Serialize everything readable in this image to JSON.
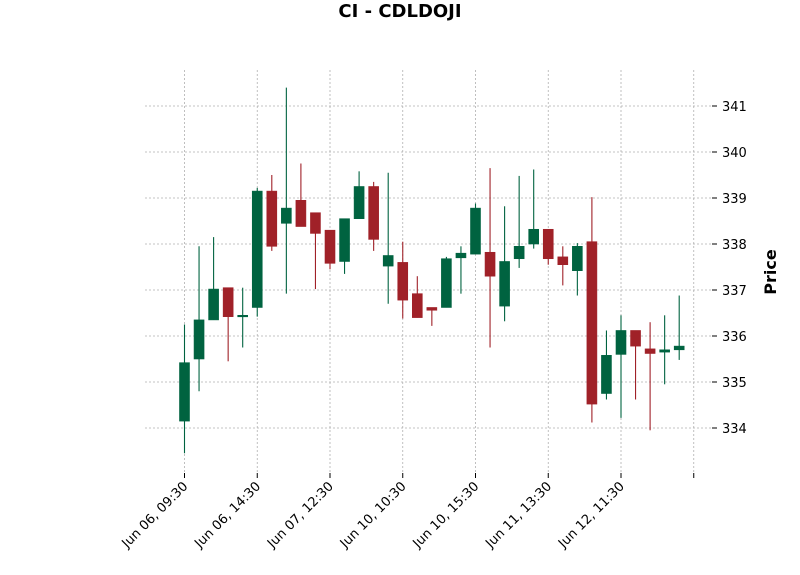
{
  "chart_data": {
    "type": "candlestick",
    "title": "CI - CDLDOJI",
    "ylabel": "Price",
    "xlabel": "",
    "ylim": [
      333.0,
      341.8
    ],
    "yticks": [
      334,
      335,
      336,
      337,
      338,
      339,
      340,
      341
    ],
    "grid": true,
    "colors": {
      "up": "#006340",
      "down": "#a02128"
    },
    "x_tick_labels": [
      {
        "index": 0,
        "label": "Jun 06, 09:30"
      },
      {
        "index": 5,
        "label": "Jun 06, 14:30"
      },
      {
        "index": 10,
        "label": "Jun 07, 12:30"
      },
      {
        "index": 15,
        "label": "Jun 10, 10:30"
      },
      {
        "index": 20,
        "label": "Jun 10, 15:30"
      },
      {
        "index": 25,
        "label": "Jun 11, 13:30"
      },
      {
        "index": 30,
        "label": "Jun 12, 11:30"
      },
      {
        "index": 35,
        "label": ""
      }
    ],
    "candles": [
      {
        "o": 334.15,
        "h": 336.25,
        "l": 333.45,
        "c": 335.42
      },
      {
        "o": 335.5,
        "h": 337.95,
        "l": 334.8,
        "c": 336.35
      },
      {
        "o": 336.35,
        "h": 338.15,
        "l": 336.35,
        "c": 337.02
      },
      {
        "o": 337.05,
        "h": 337.05,
        "l": 335.45,
        "c": 336.42
      },
      {
        "o": 336.42,
        "h": 337.05,
        "l": 335.75,
        "c": 336.45
      },
      {
        "o": 336.62,
        "h": 339.22,
        "l": 336.42,
        "c": 339.15
      },
      {
        "o": 339.15,
        "h": 339.5,
        "l": 337.85,
        "c": 337.95
      },
      {
        "o": 338.45,
        "h": 341.4,
        "l": 336.92,
        "c": 338.78
      },
      {
        "o": 338.95,
        "h": 339.75,
        "l": 338.38,
        "c": 338.38
      },
      {
        "o": 338.68,
        "h": 338.68,
        "l": 337.02,
        "c": 338.23
      },
      {
        "o": 338.3,
        "h": 338.3,
        "l": 337.45,
        "c": 337.58
      },
      {
        "o": 337.62,
        "h": 338.55,
        "l": 337.35,
        "c": 338.55
      },
      {
        "o": 338.55,
        "h": 339.58,
        "l": 338.55,
        "c": 339.25
      },
      {
        "o": 339.25,
        "h": 339.35,
        "l": 337.85,
        "c": 338.1
      },
      {
        "o": 337.52,
        "h": 339.55,
        "l": 336.7,
        "c": 337.75
      },
      {
        "o": 337.6,
        "h": 338.05,
        "l": 336.38,
        "c": 336.78
      },
      {
        "o": 336.92,
        "h": 337.3,
        "l": 336.4,
        "c": 336.4
      },
      {
        "o": 336.62,
        "h": 336.62,
        "l": 336.22,
        "c": 336.56
      },
      {
        "o": 336.62,
        "h": 337.72,
        "l": 336.62,
        "c": 337.68
      },
      {
        "o": 337.7,
        "h": 337.95,
        "l": 336.92,
        "c": 337.8
      },
      {
        "o": 337.78,
        "h": 338.88,
        "l": 337.78,
        "c": 338.78
      },
      {
        "o": 337.82,
        "h": 339.65,
        "l": 335.75,
        "c": 337.3
      },
      {
        "o": 336.65,
        "h": 338.82,
        "l": 336.32,
        "c": 337.62
      },
      {
        "o": 337.68,
        "h": 339.48,
        "l": 337.48,
        "c": 337.95
      },
      {
        "o": 338.0,
        "h": 339.62,
        "l": 337.9,
        "c": 338.32
      },
      {
        "o": 338.32,
        "h": 338.32,
        "l": 337.55,
        "c": 337.68
      },
      {
        "o": 337.72,
        "h": 337.95,
        "l": 337.1,
        "c": 337.55
      },
      {
        "o": 337.42,
        "h": 338.02,
        "l": 336.88,
        "c": 337.95
      },
      {
        "o": 338.05,
        "h": 339.02,
        "l": 334.12,
        "c": 334.52
      },
      {
        "o": 334.75,
        "h": 336.12,
        "l": 334.62,
        "c": 335.58
      },
      {
        "o": 335.6,
        "h": 336.45,
        "l": 334.22,
        "c": 336.12
      },
      {
        "o": 336.12,
        "h": 336.12,
        "l": 334.62,
        "c": 335.78
      },
      {
        "o": 335.72,
        "h": 336.3,
        "l": 333.95,
        "c": 335.62
      },
      {
        "o": 335.65,
        "h": 336.45,
        "l": 334.95,
        "c": 335.7
      },
      {
        "o": 335.7,
        "h": 336.88,
        "l": 335.48,
        "c": 335.78
      }
    ]
  }
}
